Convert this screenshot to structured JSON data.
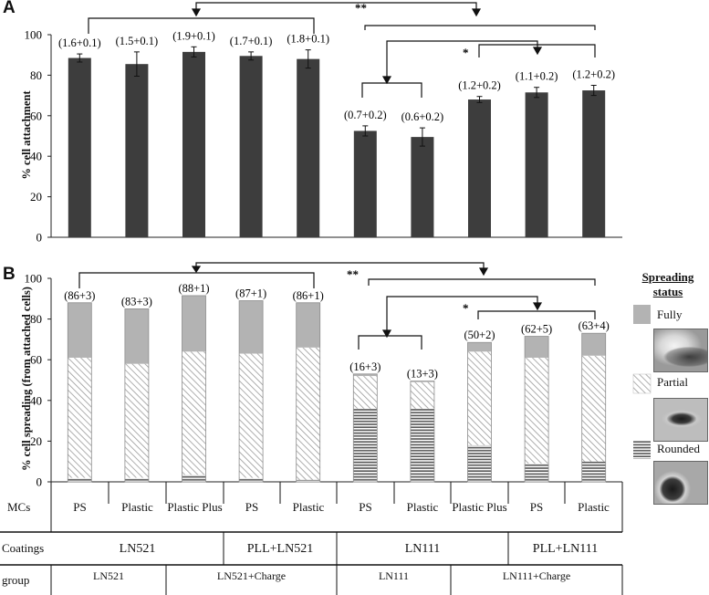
{
  "chart_data": [
    {
      "type": "bar",
      "panel": "A",
      "ylabel": "% cell attachment",
      "ylim": [
        0,
        100
      ],
      "yticks": [
        0,
        20,
        40,
        60,
        80,
        100
      ],
      "bar_color": "#3d3d3d",
      "values": [
        88.5,
        85.5,
        91.5,
        89.5,
        88.0,
        52.5,
        49.5,
        68.0,
        71.5,
        72.5
      ],
      "errors": [
        2.0,
        6.0,
        2.5,
        2.0,
        4.5,
        2.5,
        4.5,
        1.5,
        2.5,
        2.5
      ],
      "data_labels": [
        "(1.6+0.1)",
        "(1.5+0.1)",
        "(1.9+0.1)",
        "(1.7+0.1)",
        "(1.8+0.1)",
        "(0.7+0.2)",
        "(0.6+0.2)",
        "(1.2+0.2)",
        "(1.1+0.2)",
        "(1.2+0.2)"
      ],
      "significance": [
        "**",
        "*"
      ]
    },
    {
      "type": "bar",
      "stacked": true,
      "panel": "B",
      "ylabel": "% cell spreading  (from attached cells)",
      "ylim": [
        0,
        100
      ],
      "yticks": [
        0,
        20,
        40,
        60,
        80,
        100
      ],
      "series": [
        {
          "name": "Rounded",
          "values": [
            2,
            2,
            3.5,
            2,
            1,
            36,
            36,
            18,
            9,
            10
          ]
        },
        {
          "name": "Partial",
          "values": [
            59,
            56,
            60.5,
            61,
            65,
            16,
            13,
            46,
            52,
            52
          ]
        },
        {
          "name": "Fully",
          "values": [
            27,
            27,
            27.5,
            26,
            22,
            1,
            0.5,
            4.5,
            10.5,
            11
          ]
        }
      ],
      "totals": [
        88,
        85,
        91.5,
        89,
        88,
        53,
        49.5,
        68.5,
        71.5,
        73
      ],
      "data_labels": [
        "(86+3)",
        "(83+3)",
        "(88+1)",
        "(87+1)",
        "(86+1)",
        "(16+3)",
        "(13+3)",
        "(50+2)",
        "(62+5)",
        "(63+4)"
      ],
      "significance": [
        "**",
        "*"
      ]
    }
  ],
  "panels": {
    "a": "A",
    "b": "B"
  },
  "legend": {
    "title_line1": "Spreading",
    "title_line2": "status",
    "items": [
      {
        "label": "Fully",
        "fill": "solid"
      },
      {
        "label": "Partial",
        "fill": "diagonal"
      },
      {
        "label": "Rounded",
        "fill": "horizontal"
      }
    ]
  },
  "table": {
    "row_labels": {
      "mcs": "MCs",
      "coatings": "Coatings",
      "group": "group"
    },
    "mcs": [
      "PS",
      "Plastic",
      "Plastic Plus",
      "PS",
      "Plastic",
      "PS",
      "Plastic",
      "Plastic Plus",
      "PS",
      "Plastic"
    ],
    "coatings": [
      "LN521",
      "PLL+LN521",
      "LN111",
      "PLL+LN111"
    ],
    "groups": [
      "LN521",
      "LN521+Charge",
      "LN111",
      "LN111+Charge"
    ]
  },
  "colors": {
    "bar": "#3d3d3d",
    "fully": "#b3b3b3",
    "stack_outline": "#8c8c8c"
  }
}
